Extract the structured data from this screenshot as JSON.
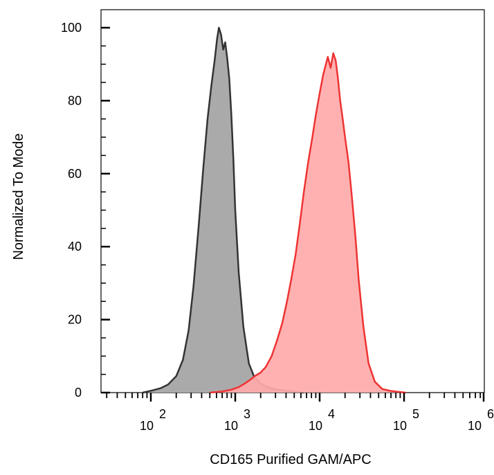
{
  "chart_data": {
    "type": "area",
    "xlabel": "CD165 Purified GAM/APC",
    "ylabel": "Normalized To Mode",
    "x_scale": "log",
    "xlim": [
      20,
      1000000
    ],
    "ylim": [
      0,
      100
    ],
    "grid": false,
    "y_ticks": [
      "0",
      "20",
      "40",
      "60",
      "80",
      "100"
    ],
    "x_ticks": [
      {
        "base": "10",
        "exp": "2",
        "value": 100
      },
      {
        "base": "10",
        "exp": "3",
        "value": 1000
      },
      {
        "base": "10",
        "exp": "4",
        "value": 10000
      },
      {
        "base": "10",
        "exp": "5",
        "value": 100000
      },
      {
        "base": "10",
        "exp": "6",
        "value": 1000000
      }
    ],
    "series": [
      {
        "fill": "#aaaaaa",
        "stroke": "#333333",
        "x": [
          80,
          100,
          130,
          160,
          200,
          240,
          280,
          320,
          370,
          420,
          470,
          520,
          570,
          610,
          640,
          680,
          720,
          760,
          800,
          850,
          900,
          950,
          1000,
          1100,
          1250,
          1450,
          1700,
          2000,
          2400,
          3000,
          3600,
          4300,
          5200,
          6500
        ],
        "values": [
          0,
          0.5,
          1.2,
          2.2,
          4.5,
          9,
          17,
          29,
          46,
          62,
          75,
          84,
          91,
          97,
          100,
          98,
          94,
          96,
          92,
          86,
          76,
          64,
          50,
          33,
          18,
          8,
          4,
          2.5,
          1.5,
          0.9,
          0.6,
          0.4,
          0.2,
          0
        ]
      },
      {
        "fill": "#ffaaaa",
        "stroke": "#ee3333",
        "x": [
          500,
          700,
          900,
          1100,
          1300,
          1500,
          1700,
          2000,
          2300,
          2700,
          3100,
          3600,
          4100,
          4600,
          5200,
          5800,
          6500,
          7300,
          8200,
          9000,
          10000,
          11000,
          12500,
          13500,
          14500,
          15500,
          16500,
          17500,
          18500,
          20000,
          22000,
          24000,
          26500,
          29000,
          33000,
          38000,
          45000,
          55000,
          68000,
          85000,
          105000
        ],
        "values": [
          0,
          0.3,
          0.8,
          1.5,
          2.5,
          3.5,
          4.5,
          5.5,
          7,
          10,
          14,
          19,
          25,
          31,
          38,
          46,
          55,
          63,
          70,
          76,
          82,
          87,
          92,
          89,
          93,
          91,
          86,
          80,
          76,
          70,
          63,
          54,
          43,
          31,
          18,
          8,
          3,
          1,
          0.5,
          0.2,
          0
        ]
      }
    ]
  }
}
